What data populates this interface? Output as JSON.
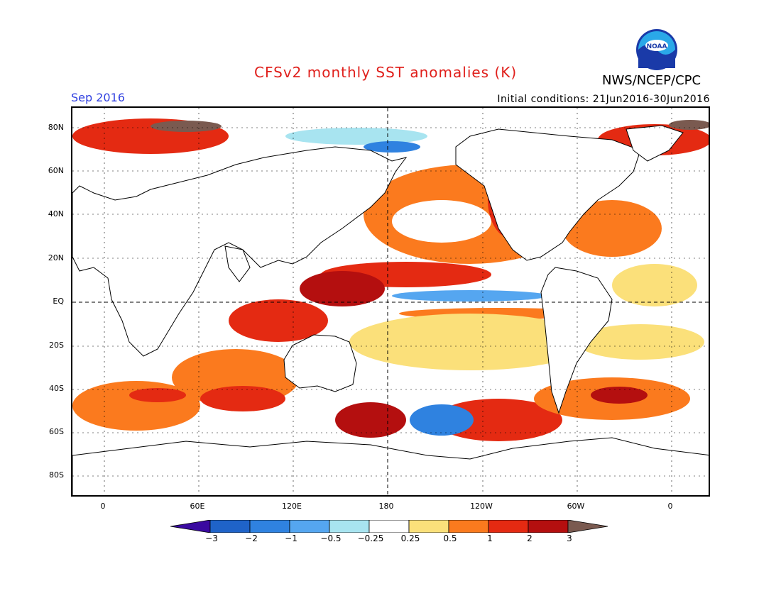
{
  "header": {
    "title": "CFSv2 monthly SST anomalies (K)",
    "agency": "NWS/NCEP/CPC",
    "month": "Sep 2016",
    "initial_conditions": "Initial conditions: 21Jun2016-30Jun2016",
    "logo_text": "NOAA"
  },
  "axes": {
    "y_labels": [
      "80N",
      "60N",
      "40N",
      "20N",
      "EQ",
      "20S",
      "40S",
      "60S",
      "80S"
    ],
    "x_labels": [
      "0",
      "60E",
      "120E",
      "180",
      "120W",
      "60W",
      "0"
    ]
  },
  "colorbar": {
    "labels": [
      "−3",
      "−2",
      "−1",
      "−0.5",
      "−0.25",
      "0.25",
      "0.5",
      "1",
      "2",
      "3"
    ],
    "colors": [
      "#3a0aa0",
      "#1f63c8",
      "#2f82e0",
      "#55a6f0",
      "#a8e4f0",
      "#ffffff",
      "#fbe07a",
      "#fb7a1e",
      "#e42a12",
      "#b40f0f",
      "#7a5a50"
    ]
  }
}
